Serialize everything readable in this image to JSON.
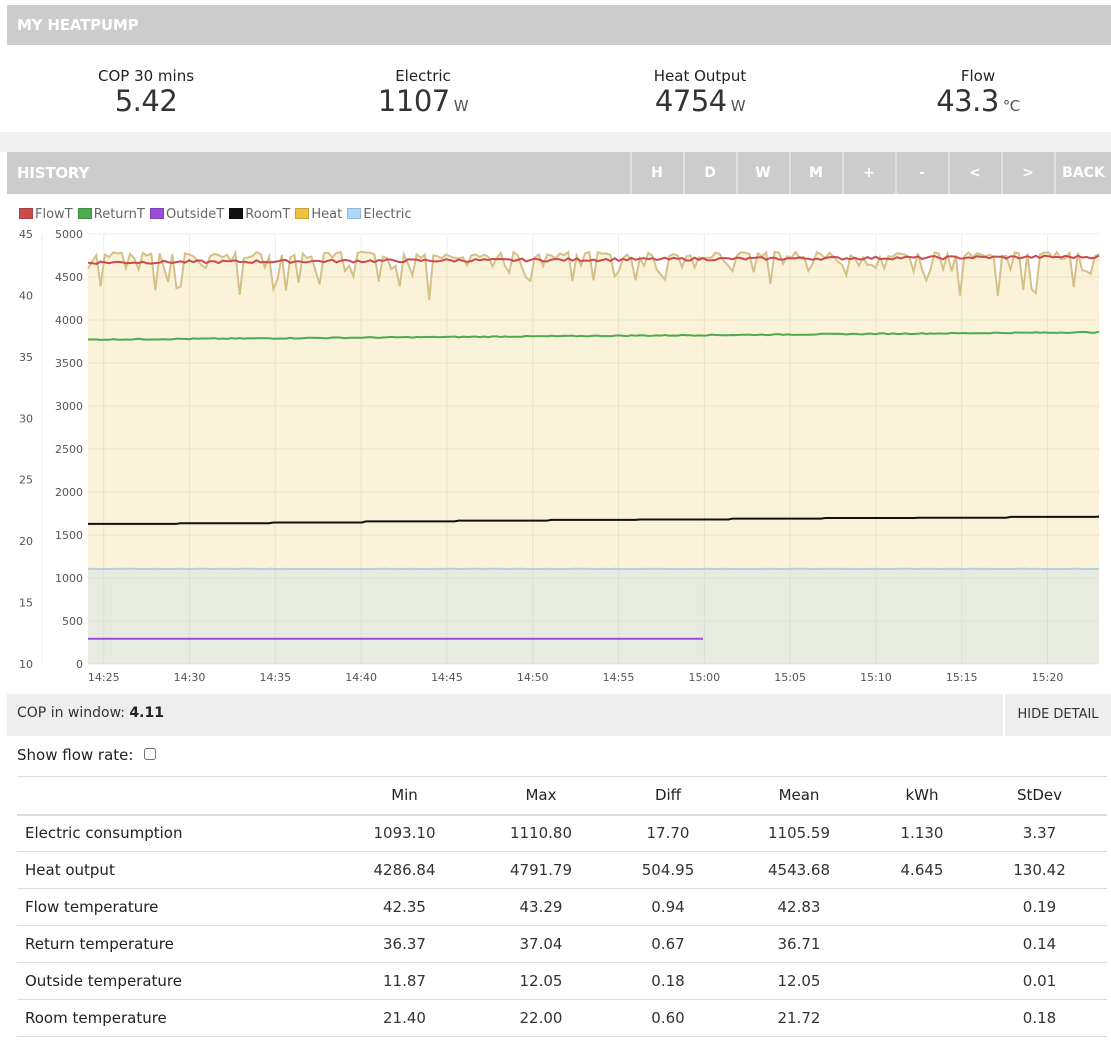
{
  "header": {
    "title": "MY HEATPUMP"
  },
  "stats": [
    {
      "label": "COP 30 mins",
      "value": "5.42",
      "unit": ""
    },
    {
      "label": "Electric",
      "value": "1107",
      "unit": "W"
    },
    {
      "label": "Heat Output",
      "value": "4754",
      "unit": "W"
    },
    {
      "label": "Flow",
      "value": "43.3",
      "unit": "°C"
    }
  ],
  "history": {
    "title": "HISTORY",
    "buttons": [
      "H",
      "D",
      "W",
      "M",
      "+",
      "-",
      "<",
      ">",
      "BACK"
    ]
  },
  "chart_data": {
    "type": "line",
    "legend": [
      {
        "name": "FlowT",
        "color": "#c94c4c"
      },
      {
        "name": "ReturnT",
        "color": "#4daa4d"
      },
      {
        "name": "OutsideT",
        "color": "#9b4dd9"
      },
      {
        "name": "RoomT",
        "color": "#111111"
      },
      {
        "name": "Heat",
        "color": "#edc240"
      },
      {
        "name": "Electric",
        "color": "#afd8f8"
      }
    ],
    "x_ticks": [
      "14:25",
      "14:30",
      "14:35",
      "14:40",
      "14:45",
      "14:50",
      "14:55",
      "15:00",
      "15:05",
      "15:10",
      "15:15",
      "15:20"
    ],
    "x_start": "14:24:05",
    "x_end": "15:23:00",
    "y_left_ticks": [
      "10",
      "15",
      "20",
      "25",
      "30",
      "35",
      "40",
      "45"
    ],
    "y_left_range": [
      10,
      45
    ],
    "y_right_ticks": [
      "0",
      "500",
      "1000",
      "1500",
      "2000",
      "2500",
      "3000",
      "3500",
      "4000",
      "4500",
      "5000"
    ],
    "y_right_range": [
      0,
      5000
    ],
    "series": [
      {
        "name": "Heat",
        "axis": "right",
        "fill": true,
        "range": [
          4286.84,
          4791.79
        ],
        "mean": 4543.68
      },
      {
        "name": "Electric",
        "axis": "right",
        "fill": true,
        "range": [
          1093.1,
          1110.8
        ],
        "mean": 1105.59
      },
      {
        "name": "FlowT",
        "axis": "left",
        "range": [
          42.35,
          43.29
        ],
        "mean": 42.83
      },
      {
        "name": "ReturnT",
        "axis": "left",
        "range": [
          36.37,
          37.04
        ],
        "mean": 36.71
      },
      {
        "name": "RoomT",
        "axis": "left",
        "range": [
          21.4,
          22.0
        ],
        "mean": 21.72
      },
      {
        "name": "OutsideT",
        "axis": "left",
        "range": [
          11.87,
          12.05
        ],
        "mean": 12.05,
        "ends_at": "15:00"
      }
    ],
    "grid": true
  },
  "cop": {
    "label": "COP in window:",
    "value": "4.11",
    "hide_detail": "HIDE DETAIL"
  },
  "flow_rate": {
    "label": "Show flow rate:",
    "checked": false
  },
  "table": {
    "headers": [
      "",
      "Min",
      "Max",
      "Diff",
      "Mean",
      "kWh",
      "StDev"
    ],
    "rows": [
      [
        "Electric consumption",
        "1093.10",
        "1110.80",
        "17.70",
        "1105.59",
        "1.130",
        "3.37"
      ],
      [
        "Heat output",
        "4286.84",
        "4791.79",
        "504.95",
        "4543.68",
        "4.645",
        "130.42"
      ],
      [
        "Flow temperature",
        "42.35",
        "43.29",
        "0.94",
        "42.83",
        "",
        "0.19"
      ],
      [
        "Return temperature",
        "36.37",
        "37.04",
        "0.67",
        "36.71",
        "",
        "0.14"
      ],
      [
        "Outside temperature",
        "11.87",
        "12.05",
        "0.18",
        "12.05",
        "",
        "0.01"
      ],
      [
        "Room temperature",
        "21.40",
        "22.00",
        "0.60",
        "21.72",
        "",
        "0.18"
      ]
    ]
  }
}
